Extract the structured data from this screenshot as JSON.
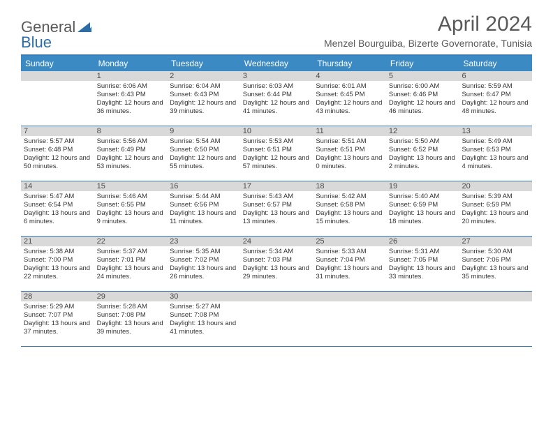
{
  "logo": {
    "text1": "General",
    "text2": "Blue"
  },
  "title": "April 2024",
  "location": "Menzel Bourguiba, Bizerte Governorate, Tunisia",
  "colors": {
    "header_bg": "#3b8ac4",
    "header_border": "#3b7bb5",
    "daynum_bg": "#d9d9d9",
    "text_dark": "#5a5a5a",
    "logo_blue": "#2c6da8"
  },
  "day_headers": [
    "Sunday",
    "Monday",
    "Tuesday",
    "Wednesday",
    "Thursday",
    "Friday",
    "Saturday"
  ],
  "weeks": [
    [
      {
        "n": "",
        "sr": "",
        "ss": "",
        "dl": ""
      },
      {
        "n": "1",
        "sr": "6:06 AM",
        "ss": "6:43 PM",
        "dl": "12 hours and 36 minutes."
      },
      {
        "n": "2",
        "sr": "6:04 AM",
        "ss": "6:43 PM",
        "dl": "12 hours and 39 minutes."
      },
      {
        "n": "3",
        "sr": "6:03 AM",
        "ss": "6:44 PM",
        "dl": "12 hours and 41 minutes."
      },
      {
        "n": "4",
        "sr": "6:01 AM",
        "ss": "6:45 PM",
        "dl": "12 hours and 43 minutes."
      },
      {
        "n": "5",
        "sr": "6:00 AM",
        "ss": "6:46 PM",
        "dl": "12 hours and 46 minutes."
      },
      {
        "n": "6",
        "sr": "5:59 AM",
        "ss": "6:47 PM",
        "dl": "12 hours and 48 minutes."
      }
    ],
    [
      {
        "n": "7",
        "sr": "5:57 AM",
        "ss": "6:48 PM",
        "dl": "12 hours and 50 minutes."
      },
      {
        "n": "8",
        "sr": "5:56 AM",
        "ss": "6:49 PM",
        "dl": "12 hours and 53 minutes."
      },
      {
        "n": "9",
        "sr": "5:54 AM",
        "ss": "6:50 PM",
        "dl": "12 hours and 55 minutes."
      },
      {
        "n": "10",
        "sr": "5:53 AM",
        "ss": "6:51 PM",
        "dl": "12 hours and 57 minutes."
      },
      {
        "n": "11",
        "sr": "5:51 AM",
        "ss": "6:51 PM",
        "dl": "13 hours and 0 minutes."
      },
      {
        "n": "12",
        "sr": "5:50 AM",
        "ss": "6:52 PM",
        "dl": "13 hours and 2 minutes."
      },
      {
        "n": "13",
        "sr": "5:49 AM",
        "ss": "6:53 PM",
        "dl": "13 hours and 4 minutes."
      }
    ],
    [
      {
        "n": "14",
        "sr": "5:47 AM",
        "ss": "6:54 PM",
        "dl": "13 hours and 6 minutes."
      },
      {
        "n": "15",
        "sr": "5:46 AM",
        "ss": "6:55 PM",
        "dl": "13 hours and 9 minutes."
      },
      {
        "n": "16",
        "sr": "5:44 AM",
        "ss": "6:56 PM",
        "dl": "13 hours and 11 minutes."
      },
      {
        "n": "17",
        "sr": "5:43 AM",
        "ss": "6:57 PM",
        "dl": "13 hours and 13 minutes."
      },
      {
        "n": "18",
        "sr": "5:42 AM",
        "ss": "6:58 PM",
        "dl": "13 hours and 15 minutes."
      },
      {
        "n": "19",
        "sr": "5:40 AM",
        "ss": "6:59 PM",
        "dl": "13 hours and 18 minutes."
      },
      {
        "n": "20",
        "sr": "5:39 AM",
        "ss": "6:59 PM",
        "dl": "13 hours and 20 minutes."
      }
    ],
    [
      {
        "n": "21",
        "sr": "5:38 AM",
        "ss": "7:00 PM",
        "dl": "13 hours and 22 minutes."
      },
      {
        "n": "22",
        "sr": "5:37 AM",
        "ss": "7:01 PM",
        "dl": "13 hours and 24 minutes."
      },
      {
        "n": "23",
        "sr": "5:35 AM",
        "ss": "7:02 PM",
        "dl": "13 hours and 26 minutes."
      },
      {
        "n": "24",
        "sr": "5:34 AM",
        "ss": "7:03 PM",
        "dl": "13 hours and 29 minutes."
      },
      {
        "n": "25",
        "sr": "5:33 AM",
        "ss": "7:04 PM",
        "dl": "13 hours and 31 minutes."
      },
      {
        "n": "26",
        "sr": "5:31 AM",
        "ss": "7:05 PM",
        "dl": "13 hours and 33 minutes."
      },
      {
        "n": "27",
        "sr": "5:30 AM",
        "ss": "7:06 PM",
        "dl": "13 hours and 35 minutes."
      }
    ],
    [
      {
        "n": "28",
        "sr": "5:29 AM",
        "ss": "7:07 PM",
        "dl": "13 hours and 37 minutes."
      },
      {
        "n": "29",
        "sr": "5:28 AM",
        "ss": "7:08 PM",
        "dl": "13 hours and 39 minutes."
      },
      {
        "n": "30",
        "sr": "5:27 AM",
        "ss": "7:08 PM",
        "dl": "13 hours and 41 minutes."
      },
      {
        "n": "",
        "sr": "",
        "ss": "",
        "dl": ""
      },
      {
        "n": "",
        "sr": "",
        "ss": "",
        "dl": ""
      },
      {
        "n": "",
        "sr": "",
        "ss": "",
        "dl": ""
      },
      {
        "n": "",
        "sr": "",
        "ss": "",
        "dl": ""
      }
    ]
  ],
  "labels": {
    "sunrise": "Sunrise:",
    "sunset": "Sunset:",
    "daylight": "Daylight:"
  }
}
